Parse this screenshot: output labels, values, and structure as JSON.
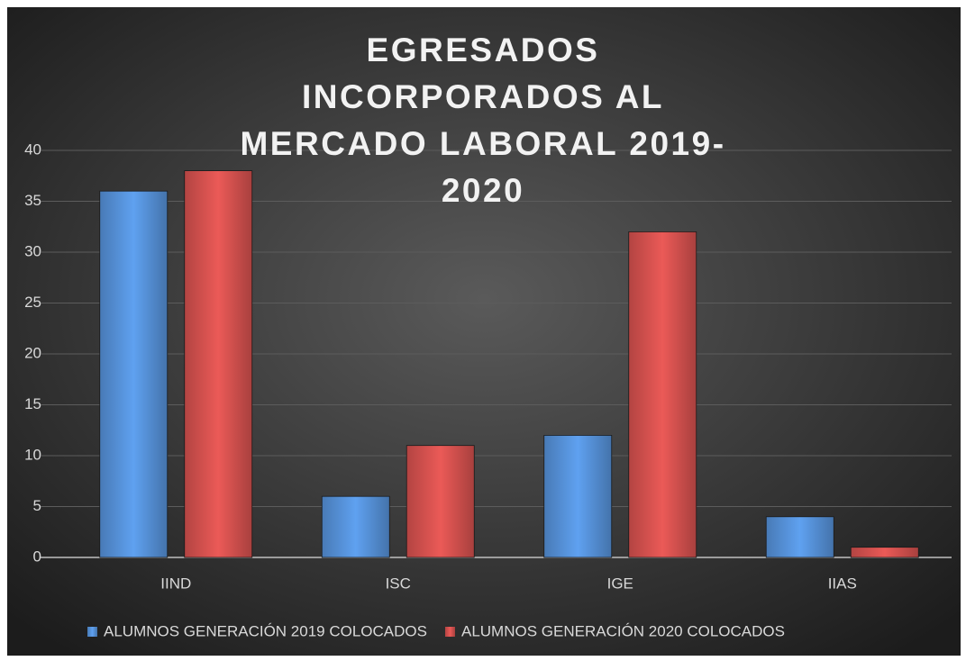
{
  "chart_data": {
    "type": "bar",
    "title": "EGRESADOS INCORPORADOS AL MERCADO LABORAL 2019-2020",
    "categories": [
      "IIND",
      "ISC",
      "IGE",
      "IIAS"
    ],
    "series": [
      {
        "name": "ALUMNOS GENERACIÓN 2019 COLOCADOS",
        "color": "#5590d6",
        "values": [
          36,
          6,
          12,
          4
        ]
      },
      {
        "name": "ALUMNOS GENERACIÓN 2020 COLOCADOS",
        "color": "#d2504e",
        "values": [
          38,
          11,
          32,
          1
        ]
      }
    ],
    "ylim": [
      0,
      40
    ],
    "yticks": [
      0,
      5,
      10,
      15,
      20,
      25,
      30,
      35,
      40
    ],
    "grid": true,
    "legend": "bottom"
  }
}
